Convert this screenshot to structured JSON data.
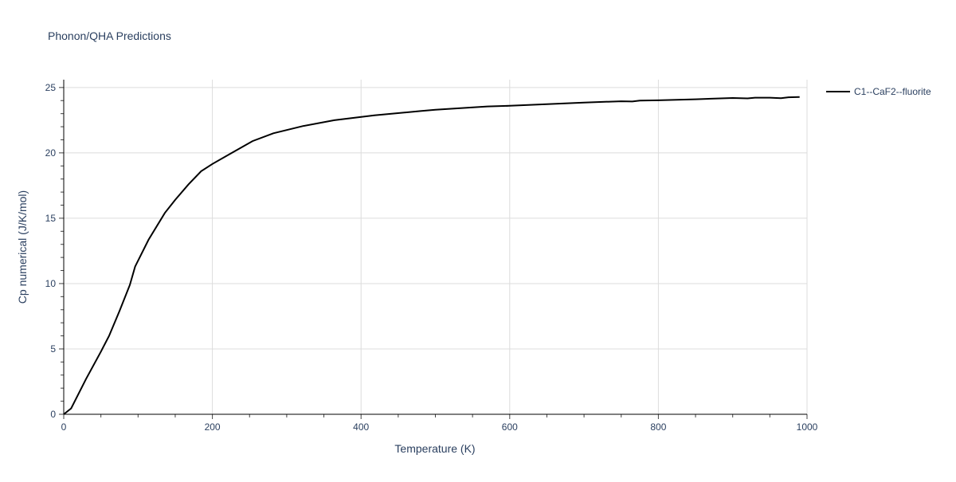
{
  "chart_data": {
    "type": "line",
    "title": "Phonon/QHA Predictions",
    "xlabel": "Temperature (K)",
    "ylabel": "Cp numerical (J/K/mol)",
    "xlim": [
      0,
      1000
    ],
    "ylim": [
      0,
      25.6
    ],
    "xticks": [
      0,
      200,
      400,
      600,
      800,
      1000
    ],
    "yticks": [
      0,
      5,
      10,
      15,
      20,
      25
    ],
    "grid": true,
    "legend_position": "right",
    "series": [
      {
        "name": "C1--CaF2--fluorite",
        "color": "#000000",
        "x": [
          0,
          10,
          30,
          50,
          61,
          75,
          89,
          96,
          114,
          136,
          150,
          168,
          185,
          200,
          225,
          254,
          282,
          322,
          364,
          418,
          480,
          500,
          570,
          600,
          700,
          750,
          765,
          775,
          800,
          850,
          900,
          920,
          930,
          950,
          965,
          975,
          990
        ],
        "y": [
          0,
          0.45,
          2.7,
          4.8,
          6.0,
          7.9,
          9.9,
          11.3,
          13.35,
          15.4,
          16.4,
          17.6,
          18.6,
          19.15,
          19.96,
          20.9,
          21.5,
          22.05,
          22.5,
          22.87,
          23.2,
          23.3,
          23.55,
          23.6,
          23.85,
          23.95,
          23.93,
          24.0,
          24.02,
          24.1,
          24.2,
          24.17,
          24.22,
          24.22,
          24.18,
          24.25,
          24.28
        ]
      }
    ]
  }
}
